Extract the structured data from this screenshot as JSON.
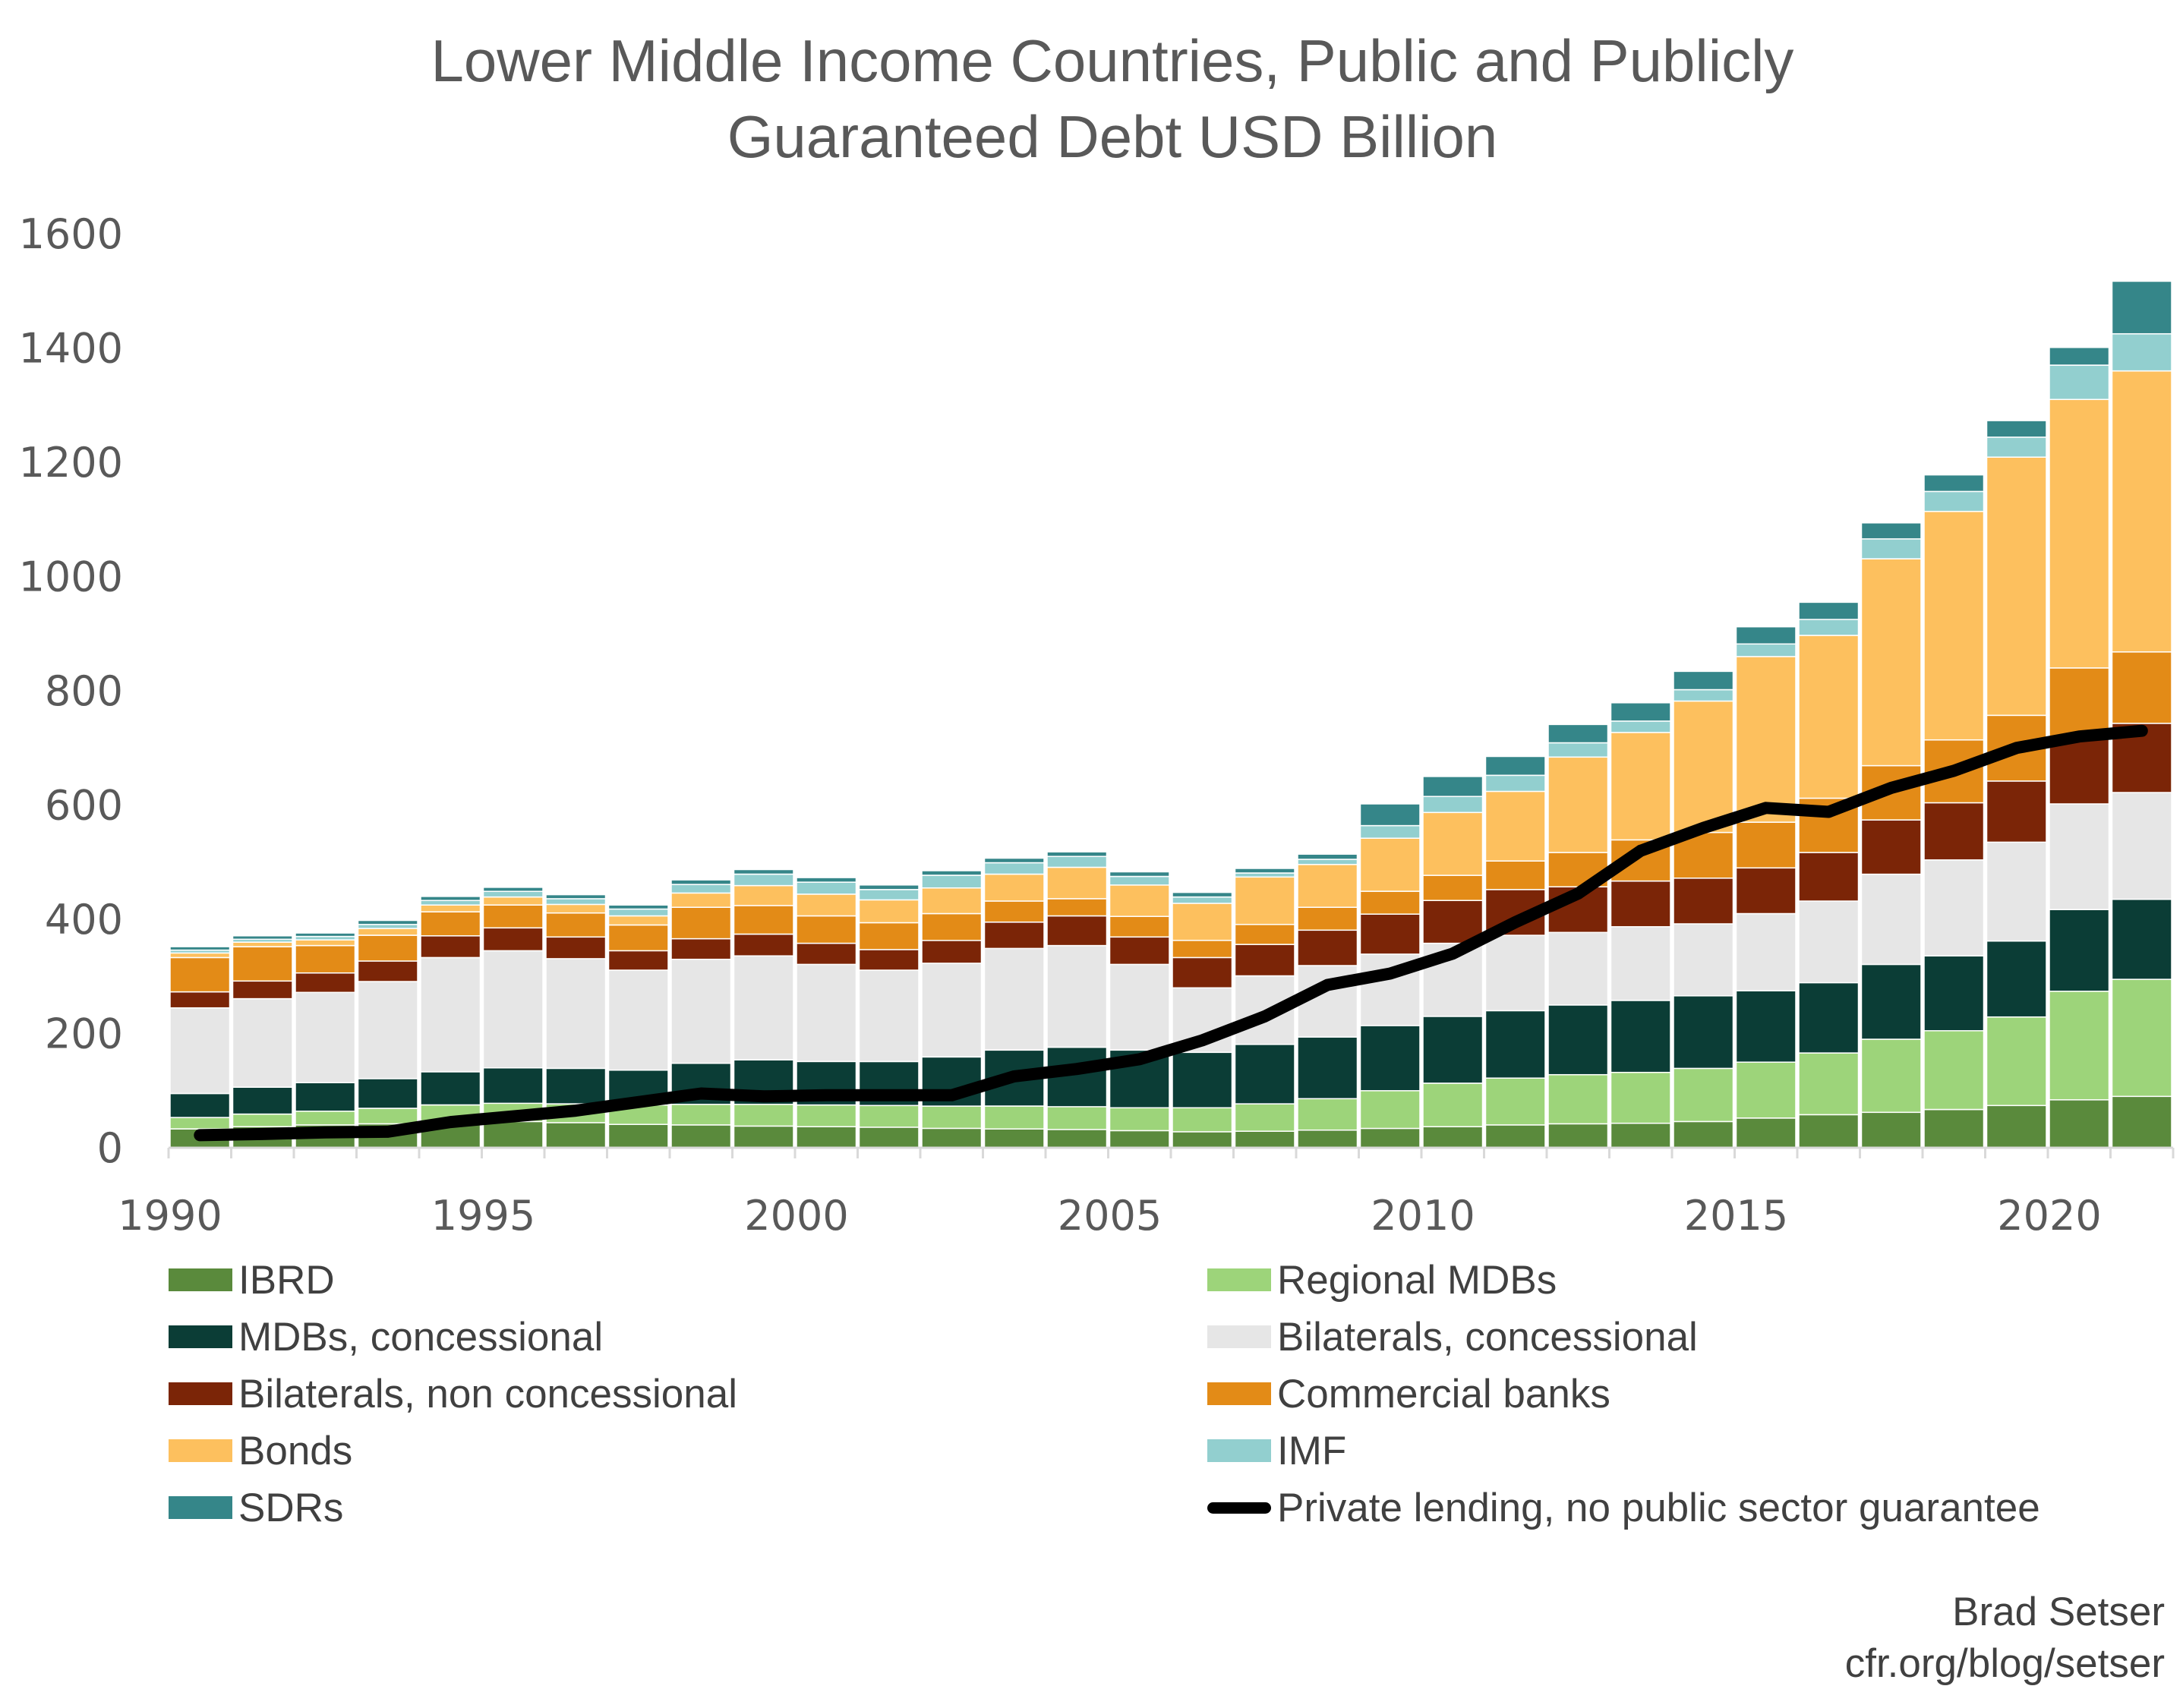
{
  "chart_data": {
    "type": "bar",
    "stacked": true,
    "title": [
      "Lower Middle Income Countries, Public and Publicly",
      "Guaranteed Debt USD Billion"
    ],
    "xlabel": "",
    "ylabel": "",
    "ylim": [
      0,
      1600
    ],
    "yticks": [
      0,
      200,
      400,
      600,
      800,
      1000,
      1200,
      1400,
      1600
    ],
    "xticks": [
      1990,
      1995,
      2000,
      2005,
      2010,
      2015,
      2020
    ],
    "grid": false,
    "legend_position": "bottom",
    "categories": [
      1990,
      1991,
      1992,
      1993,
      1994,
      1995,
      1996,
      1997,
      1998,
      1999,
      2000,
      2001,
      2002,
      2003,
      2004,
      2005,
      2006,
      2007,
      2008,
      2009,
      2010,
      2011,
      2012,
      2013,
      2014,
      2015,
      2016,
      2017,
      2018,
      2019,
      2020,
      2021
    ],
    "series": [
      {
        "name": "IBRD",
        "color": "#5a8a3c",
        "values": [
          33,
          37,
          40,
          42,
          45,
          46,
          44,
          41,
          40,
          38,
          37,
          36,
          34,
          33,
          32,
          30,
          28,
          29,
          31,
          34,
          37,
          40,
          42,
          43,
          46,
          52,
          58,
          62,
          67,
          74,
          84,
          90
        ]
      },
      {
        "name": "Regional MDBs",
        "color": "#9dd47a",
        "values": [
          20,
          22,
          24,
          27,
          30,
          32,
          33,
          34,
          36,
          38,
          38,
          38,
          39,
          40,
          40,
          40,
          42,
          48,
          55,
          66,
          76,
          82,
          86,
          89,
          93,
          98,
          108,
          128,
          138,
          155,
          190,
          205
        ]
      },
      {
        "name": "MDBs, concessional",
        "color": "#0b3d36",
        "values": [
          42,
          47,
          50,
          52,
          58,
          62,
          62,
          61,
          72,
          78,
          76,
          77,
          86,
          98,
          104,
          101,
          97,
          104,
          108,
          114,
          117,
          118,
          122,
          126,
          127,
          125,
          123,
          131,
          131,
          133,
          143,
          140
        ]
      },
      {
        "name": "Bilaterals, concessional",
        "color": "#e6e6e6",
        "values": [
          150,
          155,
          158,
          170,
          200,
          205,
          192,
          175,
          182,
          182,
          170,
          160,
          164,
          178,
          178,
          150,
          113,
          120,
          125,
          125,
          128,
          132,
          127,
          129,
          126,
          135,
          143,
          158,
          168,
          173,
          185,
          187
        ]
      },
      {
        "name": "Bilaterals, non concessional",
        "color": "#7b2507",
        "values": [
          28,
          31,
          34,
          36,
          38,
          40,
          38,
          34,
          36,
          38,
          37,
          36,
          40,
          46,
          52,
          48,
          53,
          55,
          62,
          70,
          75,
          80,
          80,
          80,
          80,
          80,
          85,
          95,
          100,
          107,
          118,
          121
        ]
      },
      {
        "name": "Commercial banks",
        "color": "#e38b17",
        "values": [
          60,
          60,
          48,
          45,
          42,
          40,
          42,
          45,
          55,
          50,
          48,
          47,
          47,
          37,
          30,
          36,
          30,
          35,
          40,
          40,
          44,
          50,
          60,
          72,
          80,
          80,
          95,
          95,
          110,
          115,
          120,
          125
        ]
      },
      {
        "name": "Bonds",
        "color": "#fdc05e",
        "values": [
          8,
          8,
          10,
          12,
          12,
          14,
          15,
          16,
          25,
          35,
          38,
          40,
          45,
          47,
          55,
          55,
          65,
          83,
          75,
          93,
          110,
          122,
          167,
          188,
          230,
          290,
          285,
          362,
          400,
          452,
          470,
          492
        ]
      },
      {
        "name": "IMF",
        "color": "#92cfcf",
        "values": [
          5,
          5,
          6,
          7,
          8,
          10,
          10,
          12,
          15,
          20,
          21,
          18,
          22,
          20,
          19,
          15,
          11,
          7,
          9,
          22,
          28,
          28,
          25,
          20,
          20,
          22,
          28,
          35,
          35,
          35,
          60,
          65
        ]
      },
      {
        "name": "SDRs",
        "color": "#358689",
        "values": [
          6,
          6,
          6,
          7,
          7,
          7,
          7,
          7,
          8,
          8,
          8,
          8,
          8,
          8,
          8,
          8,
          8,
          8,
          9,
          38,
          35,
          33,
          32,
          32,
          32,
          30,
          30,
          28,
          29,
          29,
          31,
          92
        ]
      }
    ],
    "line_series": {
      "name": "Private lending, no public sector guarantee",
      "color": "#000000",
      "values": [
        22,
        24,
        27,
        28,
        45,
        55,
        65,
        80,
        95,
        90,
        92,
        92,
        92,
        125,
        138,
        155,
        188,
        230,
        285,
        305,
        340,
        395,
        445,
        520,
        560,
        595,
        588,
        630,
        660,
        700,
        720,
        730
      ]
    }
  },
  "credit": {
    "line1": "Brad Setser",
    "line2": "cfr.org/blog/setser"
  }
}
